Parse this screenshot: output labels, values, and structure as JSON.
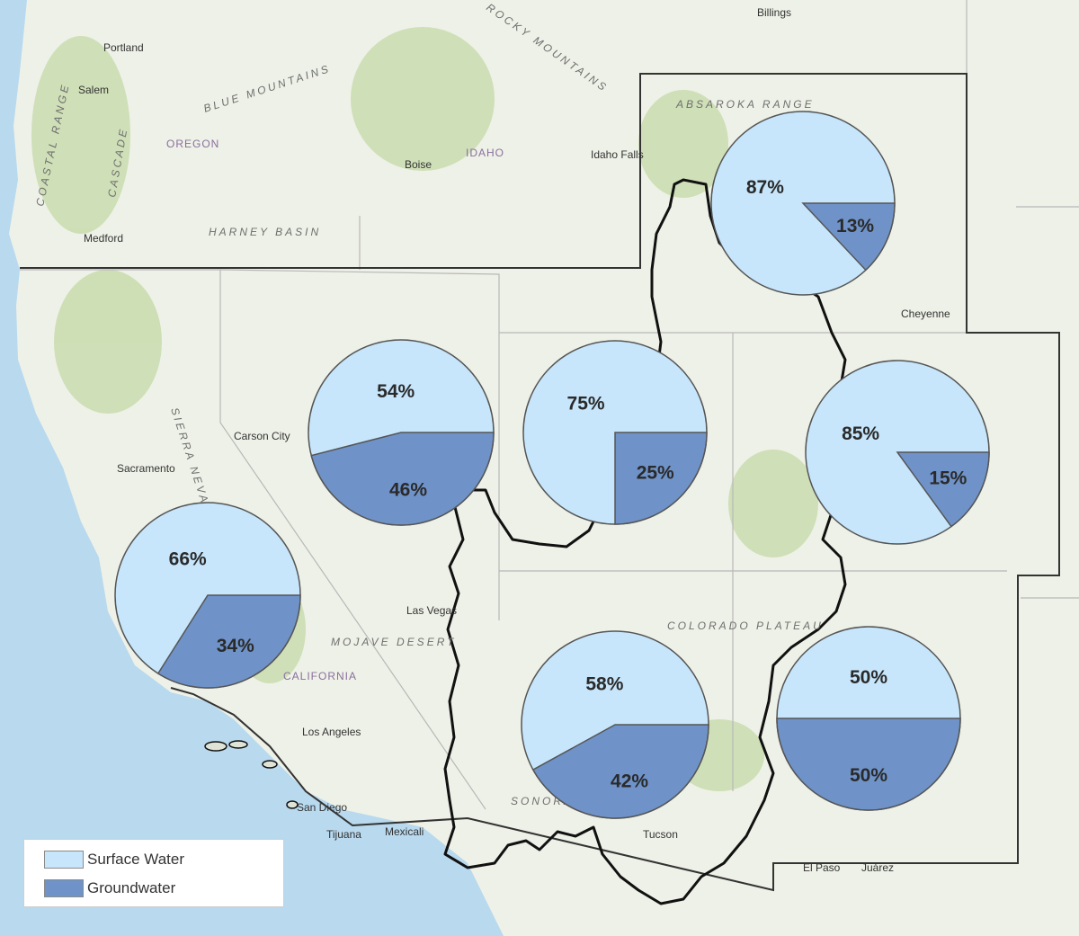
{
  "colors": {
    "surface_water": "#c7e6fb",
    "groundwater": "#6f93c8",
    "ocean": "#b8d9ee",
    "land": "#eef1e7",
    "forest": "#c9dcae",
    "outline": "#111111"
  },
  "legend": {
    "surface_label": "Surface Water",
    "ground_label": "Groundwater"
  },
  "places": {
    "cities": [
      "Portland",
      "Salem",
      "Boise",
      "Medford",
      "Idaho Falls",
      "Billings",
      "Cheyenne",
      "Carson City",
      "Sacramento",
      "Las Vegas",
      "Los Angeles",
      "San Diego",
      "Tijuana",
      "Mexicali",
      "Tucson",
      "El Paso",
      "Juárez"
    ],
    "regions": [
      "COASTAL RANGE",
      "CASCADE",
      "BLUE MOUNTAINS",
      "HARNEY BASIN",
      "ABSAROKA RANGE",
      "MOJAVE DESERT",
      "COLORADO PLATEAU",
      "SONORAN DESERT",
      "SIERRA NEVADA",
      "ROCKY MOUNTAINS"
    ],
    "states": [
      "OREGON",
      "IDAHO",
      "CALIFORNIA"
    ]
  },
  "chart_data": {
    "type": "pie",
    "series_names": [
      "Surface Water",
      "Groundwater"
    ],
    "pies": [
      {
        "surface": 87,
        "ground": 13,
        "surface_label": "87%",
        "ground_label": "13%"
      },
      {
        "surface": 54,
        "ground": 46,
        "surface_label": "54%",
        "ground_label": "46%"
      },
      {
        "surface": 75,
        "ground": 25,
        "surface_label": "75%",
        "ground_label": "25%"
      },
      {
        "surface": 85,
        "ground": 15,
        "surface_label": "85%",
        "ground_label": "15%"
      },
      {
        "surface": 66,
        "ground": 34,
        "surface_label": "66%",
        "ground_label": "34%"
      },
      {
        "surface": 58,
        "ground": 42,
        "surface_label": "58%",
        "ground_label": "42%"
      },
      {
        "surface": 50,
        "ground": 50,
        "surface_label": "50%",
        "ground_label": "50%"
      }
    ]
  }
}
